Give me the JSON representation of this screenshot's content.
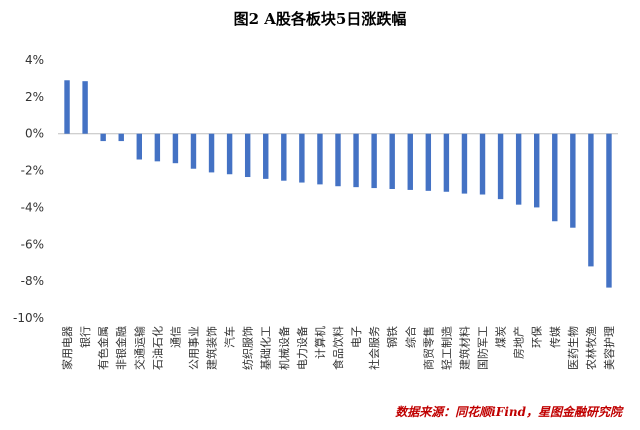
{
  "chart_data": {
    "type": "bar",
    "title": "图2  A股各板块5日涨跌幅",
    "xlabel": "",
    "ylabel": "",
    "ylim": [
      -10,
      4
    ],
    "yticks": [
      4,
      2,
      0,
      -2,
      -4,
      -6,
      -8,
      -10
    ],
    "ytick_labels": [
      "4%",
      "2%",
      "0%",
      "-2%",
      "-4%",
      "-6%",
      "-8%",
      "-10%"
    ],
    "grid": true,
    "legend": "none",
    "categories": [
      "家用电器",
      "银行",
      "有色金属",
      "非银金融",
      "交通运输",
      "石油石化",
      "通信",
      "公用事业",
      "建筑装饰",
      "汽车",
      "纺织服饰",
      "基础化工",
      "机械设备",
      "电力设备",
      "计算机",
      "食品饮料",
      "电子",
      "社会服务",
      "钢铁",
      "综合",
      "商贸零售",
      "轻工制造",
      "建筑材料",
      "国防军工",
      "煤炭",
      "房地产",
      "环保",
      "传媒",
      "医药生物",
      "农林牧渔",
      "美容护理"
    ],
    "values": [
      2.9,
      2.85,
      -0.4,
      -0.4,
      -1.4,
      -1.5,
      -1.6,
      -1.9,
      -2.1,
      -2.2,
      -2.35,
      -2.45,
      -2.55,
      -2.65,
      -2.75,
      -2.85,
      -2.9,
      -2.95,
      -3.0,
      -3.05,
      -3.1,
      -3.15,
      -3.25,
      -3.3,
      -3.55,
      -3.85,
      -4.0,
      -4.75,
      -5.1,
      -7.2,
      -8.35
    ],
    "bar_color": "#4472C4"
  },
  "source": {
    "text": "数据来源：同花顺iFind，星图金融研究院",
    "color": "#C00000"
  }
}
